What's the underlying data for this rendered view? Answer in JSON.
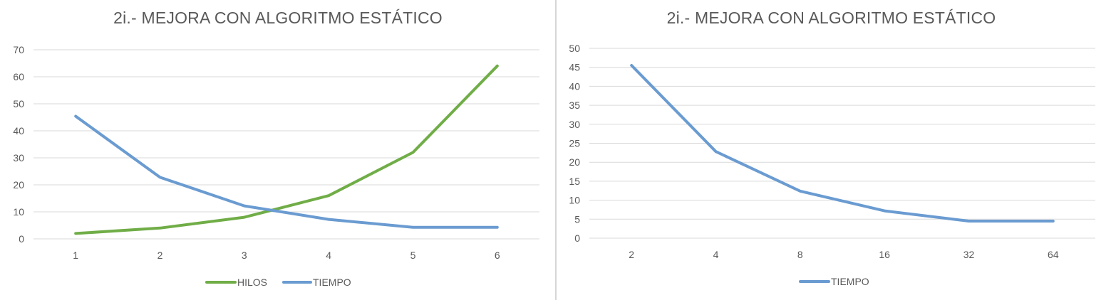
{
  "charts": [
    {
      "title": "2i.- MEJORA CON ALGORITMO ESTÁTICO"
    },
    {
      "title": "2i.- MEJORA CON ALGORITMO ESTÁTICO"
    }
  ],
  "chart_data": [
    {
      "type": "line",
      "title": "2i.- MEJORA CON ALGORITMO ESTÁTICO",
      "categories": [
        "1",
        "2",
        "3",
        "4",
        "5",
        "6"
      ],
      "series": [
        {
          "name": "HILOS",
          "color": "#70AD47",
          "values": [
            2,
            4,
            8,
            16,
            32,
            64
          ]
        },
        {
          "name": "TIEMPO",
          "color": "#6A9BD1",
          "values": [
            45.4,
            22.8,
            12.2,
            7.2,
            4.3,
            4.3
          ]
        }
      ],
      "xlabel": "",
      "ylabel": "",
      "ylim": [
        0,
        70
      ],
      "yticks": [
        0,
        10,
        20,
        30,
        40,
        50,
        60,
        70
      ],
      "grid": true,
      "legend": "bottom"
    },
    {
      "type": "line",
      "title": "2i.- MEJORA CON ALGORITMO ESTÁTICO",
      "categories": [
        "2",
        "4",
        "8",
        "16",
        "32",
        "64"
      ],
      "series": [
        {
          "name": "TIEMPO",
          "color": "#6A9BD1",
          "values": [
            45.5,
            22.8,
            12.4,
            7.2,
            4.5,
            4.5
          ]
        }
      ],
      "xlabel": "",
      "ylabel": "",
      "ylim": [
        0,
        50
      ],
      "yticks": [
        0,
        5,
        10,
        15,
        20,
        25,
        30,
        35,
        40,
        45,
        50
      ],
      "grid": true,
      "legend": "bottom"
    }
  ]
}
